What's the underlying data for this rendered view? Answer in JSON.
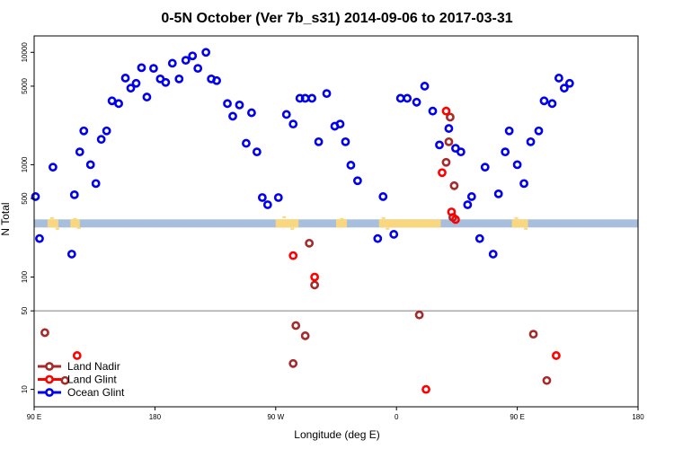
{
  "chart_data": {
    "type": "scatter",
    "title": "0-5N October (Ver 7b_s31)   2014-09-06 to 2017-03-31",
    "xlabel": "Longitude (deg E)",
    "ylabel": "N Total",
    "x_axis": {
      "domain": [
        90,
        450
      ],
      "ticks": [
        {
          "value": 90,
          "label": "90 E"
        },
        {
          "value": 180,
          "label": "180"
        },
        {
          "value": 270,
          "label": "90 W"
        },
        {
          "value": 360,
          "label": "0"
        },
        {
          "value": 450,
          "label": "90 E"
        },
        {
          "value": 540,
          "label": "180"
        }
      ],
      "range": [
        90,
        540
      ]
    },
    "y_axis": {
      "scale": "log",
      "range": [
        7,
        14000
      ],
      "ticks": [
        {
          "value": 10,
          "label": "10"
        },
        {
          "value": 50,
          "label": "50"
        },
        {
          "value": 100,
          "label": "100"
        },
        {
          "value": 500,
          "label": "500"
        },
        {
          "value": 1000,
          "label": "1000"
        },
        {
          "value": 5000,
          "label": "5000"
        },
        {
          "value": 10000,
          "label": "10000"
        }
      ]
    },
    "reference_line": {
      "value": 50,
      "color": "#7f7f7f"
    },
    "land_band": {
      "center": 300,
      "colors": {
        "ocean": "#a7bfdc",
        "land": "#f9d77e"
      }
    },
    "series": [
      {
        "name": "Land Nadir",
        "color": "#a52a2a",
        "points": [
          [
            98,
            32
          ],
          [
            113,
            12
          ],
          [
            283,
            17
          ],
          [
            285,
            37
          ],
          [
            292,
            30
          ],
          [
            295,
            200
          ],
          [
            299,
            85
          ],
          [
            377,
            46
          ],
          [
            397,
            1050
          ],
          [
            399,
            1600
          ],
          [
            400,
            2650
          ],
          [
            402,
            340
          ],
          [
            403,
            650
          ],
          [
            462,
            31
          ],
          [
            472,
            12
          ]
        ]
      },
      {
        "name": "Land Glint",
        "color": "#ff0000",
        "points": [
          [
            122,
            20
          ],
          [
            283,
            155
          ],
          [
            299,
            100
          ],
          [
            382,
            10
          ],
          [
            394,
            850
          ],
          [
            397,
            3000
          ],
          [
            401,
            380
          ],
          [
            404,
            325
          ],
          [
            479,
            20
          ]
        ]
      },
      {
        "name": "Ocean Glint",
        "color": "#0000ee",
        "points": [
          [
            91,
            520
          ],
          [
            94,
            220
          ],
          [
            104,
            950
          ],
          [
            118,
            160
          ],
          [
            120,
            540
          ],
          [
            124,
            1300
          ],
          [
            127,
            2000
          ],
          [
            132,
            1000
          ],
          [
            136,
            680
          ],
          [
            140,
            1680
          ],
          [
            144,
            2000
          ],
          [
            148,
            3700
          ],
          [
            153,
            3500
          ],
          [
            158,
            5900
          ],
          [
            162,
            4800
          ],
          [
            166,
            5300
          ],
          [
            170,
            7300
          ],
          [
            174,
            4000
          ],
          [
            179,
            7200
          ],
          [
            184,
            5800
          ],
          [
            188,
            5400
          ],
          [
            193,
            8000
          ],
          [
            198,
            5800
          ],
          [
            203,
            8500
          ],
          [
            208,
            9300
          ],
          [
            212,
            7200
          ],
          [
            218,
            10000
          ],
          [
            222,
            5800
          ],
          [
            226,
            5600
          ],
          [
            234,
            3500
          ],
          [
            238,
            2700
          ],
          [
            243,
            3400
          ],
          [
            248,
            1550
          ],
          [
            252,
            2900
          ],
          [
            256,
            1300
          ],
          [
            260,
            510
          ],
          [
            264,
            440
          ],
          [
            272,
            510
          ],
          [
            278,
            2800
          ],
          [
            283,
            2300
          ],
          [
            288,
            3900
          ],
          [
            292,
            3900
          ],
          [
            297,
            3900
          ],
          [
            302,
            1600
          ],
          [
            308,
            4300
          ],
          [
            314,
            2200
          ],
          [
            318,
            2300
          ],
          [
            322,
            1600
          ],
          [
            326,
            990
          ],
          [
            331,
            720
          ],
          [
            346,
            220
          ],
          [
            350,
            520
          ],
          [
            358,
            240
          ],
          [
            363,
            3900
          ],
          [
            368,
            3900
          ],
          [
            375,
            3600
          ],
          [
            381,
            5000
          ],
          [
            387,
            3000
          ],
          [
            392,
            1500
          ],
          [
            399,
            2100
          ],
          [
            404,
            1400
          ],
          [
            408,
            1300
          ],
          [
            413,
            440
          ],
          [
            416,
            520
          ],
          [
            422,
            220
          ],
          [
            426,
            950
          ],
          [
            432,
            160
          ],
          [
            436,
            550
          ],
          [
            441,
            1300
          ],
          [
            444,
            2000
          ],
          [
            450,
            1000
          ],
          [
            455,
            680
          ],
          [
            460,
            1600
          ],
          [
            466,
            2000
          ],
          [
            470,
            3700
          ],
          [
            476,
            3500
          ],
          [
            481,
            5900
          ],
          [
            485,
            4800
          ],
          [
            489,
            5300
          ]
        ]
      }
    ],
    "legend": {
      "position": "bottom-left"
    }
  }
}
